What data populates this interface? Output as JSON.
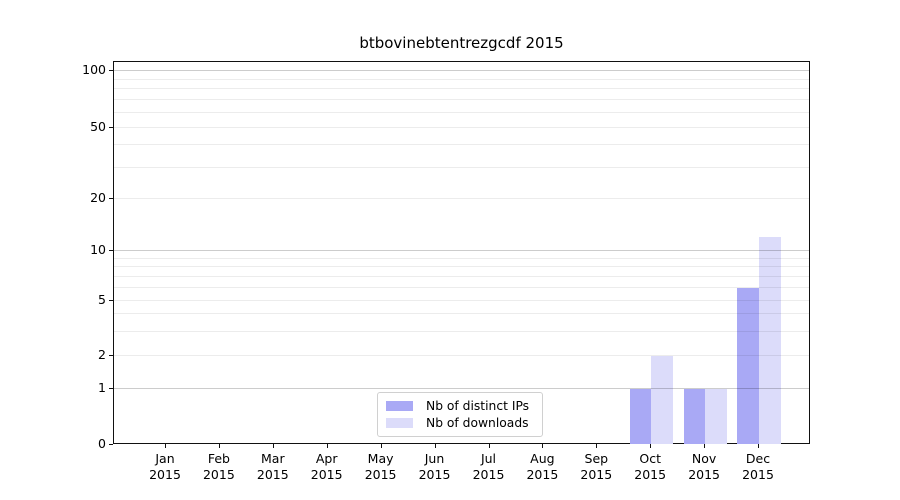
{
  "chart_data": {
    "type": "bar",
    "title": "btbovinebtentrezgcdf 2015",
    "categories": [
      "Jan 2015",
      "Feb 2015",
      "Mar 2015",
      "Apr 2015",
      "May 2015",
      "Jun 2015",
      "Jul 2015",
      "Aug 2015",
      "Sep 2015",
      "Oct 2015",
      "Nov 2015",
      "Dec 2015"
    ],
    "series": [
      {
        "name": "Nb of distinct IPs",
        "color": "#a9a9f5",
        "values": [
          0,
          0,
          0,
          0,
          0,
          0,
          0,
          0,
          0,
          1,
          1,
          6
        ]
      },
      {
        "name": "Nb of downloads",
        "color": "#dcdcfa",
        "values": [
          0,
          0,
          0,
          0,
          0,
          0,
          0,
          0,
          0,
          2,
          1,
          12
        ]
      }
    ],
    "y_axis": {
      "scale": "log-like (linear below 1)",
      "tick_values": [
        0,
        1,
        2,
        5,
        10,
        20,
        50,
        100
      ],
      "tick_labels": [
        "0",
        "1",
        "2",
        "5",
        "10",
        "20",
        "50",
        "100"
      ],
      "minor_gridline_values": [
        3,
        4,
        6,
        7,
        8,
        9,
        30,
        40,
        60,
        70,
        80,
        90
      ],
      "emphasized_gridlines": [
        1,
        10,
        100
      ],
      "range": [
        0,
        100
      ]
    },
    "x_axis": {
      "label": "",
      "tick_style": "two-line month/year"
    },
    "legend": {
      "position": "lower center",
      "entries": [
        "Nb of distinct IPs",
        "Nb of downloads"
      ]
    },
    "grid": true
  },
  "style": {
    "background": "#ffffff",
    "spine_color": "#111111",
    "text_color": "#000000",
    "minor_grid_rgba": "rgba(0,0,0,0.075)",
    "major_grid_rgba": "rgba(0,0,0,0.20)"
  }
}
